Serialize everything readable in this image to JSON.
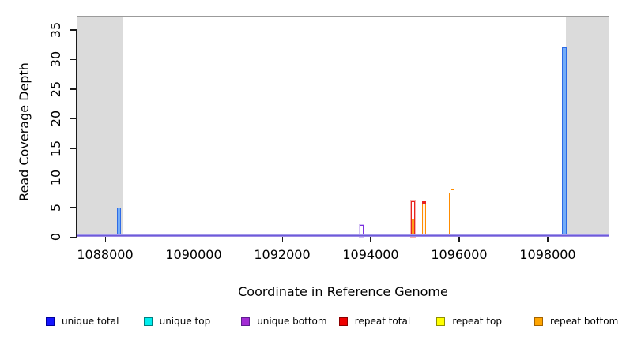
{
  "chart_data": {
    "type": "line",
    "title": "",
    "xlabel": "Coordinate in Reference Genome",
    "ylabel": "Read Coverage Depth",
    "xlim": [
      1087357,
      1099393
    ],
    "ylim": [
      0,
      37.2
    ],
    "x_ticks": [
      1088000,
      1090000,
      1092000,
      1094000,
      1096000,
      1098000
    ],
    "y_ticks": [
      0,
      5,
      10,
      15,
      20,
      25,
      30,
      35
    ],
    "grid": false,
    "legend_position": "bottom",
    "shaded_regions": [
      {
        "x0": 1087357,
        "x1": 1088392,
        "color": "#DBDBDB"
      },
      {
        "x0": 1098410,
        "x1": 1099393,
        "color": "#DBDBDB"
      }
    ],
    "series": [
      {
        "name": "unique total",
        "color": "#0000FF",
        "points": [
          {
            "x": 1088320,
            "depth": 5
          },
          {
            "x": 1098380,
            "depth": 32
          }
        ]
      },
      {
        "name": "unique top",
        "color": "#00FFFF",
        "points": []
      },
      {
        "name": "unique bottom",
        "color": "#A020F0",
        "points": [
          {
            "x": 1093790,
            "depth": 2
          }
        ]
      },
      {
        "name": "repeat total",
        "color": "#FF0000",
        "points": [
          {
            "x": 1094950,
            "depth": 6
          },
          {
            "x": 1095200,
            "depth": 6
          }
        ]
      },
      {
        "name": "repeat top",
        "color": "#FFFF00",
        "points": [
          {
            "x": 1094950,
            "depth": 3
          }
        ]
      },
      {
        "name": "repeat bottom",
        "color": "#FFA500",
        "points": [
          {
            "x": 1094950,
            "depth": 6
          },
          {
            "x": 1095200,
            "depth": 6
          },
          {
            "x": 1095550,
            "depth": 0.4
          },
          {
            "x": 1095790,
            "depth": 7.5
          },
          {
            "x": 1095845,
            "depth": 8
          }
        ]
      }
    ],
    "render": {
      "top_border_color": "#9B9B9B",
      "axis_color": "#1a1a1a",
      "baseline_colors": [
        "#C8BEF2",
        "#5A4AD6",
        "#BFA8EA"
      ],
      "bars": [
        {
          "x": 1088320,
          "y0": 0,
          "y1": 5,
          "w": 5,
          "stroke": "#2E6BE6",
          "fill": "#74ADF7"
        },
        {
          "x": 1093790,
          "y0": 0,
          "y1": 2,
          "w": 5,
          "stroke": "#7B2FE0",
          "fill": "#FFFFFF",
          "halo": "#D3C2F4"
        },
        {
          "x": 1094950,
          "y0": 0,
          "y1": 6,
          "w": 5,
          "stroke": "#E8231F",
          "fill": "#FFFFFF",
          "halo": "#F6B3AE"
        },
        {
          "x": 1094950,
          "y0": 0,
          "y1": 3,
          "w": 3,
          "stroke": "#FF9F1A",
          "fill": "#FFD84D"
        },
        {
          "x": 1095200,
          "y0": 0,
          "y1": 6,
          "w": 5,
          "stroke": "#FF8C00",
          "fill": "#FFF4E8"
        },
        {
          "x": 1095200,
          "y0": 5.55,
          "y1": 6,
          "w": 5,
          "stroke": "#E8231F",
          "fill": "#E8231F"
        },
        {
          "x": 1095550,
          "y0": 0,
          "y1": 0.4,
          "w": 7,
          "stroke": "#FF8C00",
          "fill": "#FFB347"
        },
        {
          "x": 1095790,
          "y0": 0,
          "y1": 7.5,
          "w": 3,
          "stroke": "#FF8C00",
          "fill": "#FFFFFF"
        },
        {
          "x": 1095845,
          "y0": 0,
          "y1": 8,
          "w": 5,
          "stroke": "#FF8C00",
          "fill": "#FFFFFF"
        },
        {
          "x": 1098380,
          "y0": 0,
          "y1": 32,
          "w": 6,
          "stroke": "#2E6BE6",
          "fill": "#74ADF7"
        }
      ]
    },
    "legend": [
      {
        "label": "unique total",
        "fill": "#1414FF",
        "border": "#00009B"
      },
      {
        "label": "unique top",
        "fill": "#00EEEE",
        "border": "#007F7F"
      },
      {
        "label": "unique bottom",
        "fill": "#A32CD4",
        "border": "#5E1E8F"
      },
      {
        "label": "repeat total",
        "fill": "#EE0000",
        "border": "#8B0000"
      },
      {
        "label": "repeat top",
        "fill": "#FFFF00",
        "border": "#8F8F00"
      },
      {
        "label": "repeat bottom",
        "fill": "#FFA500",
        "border": "#A36200"
      }
    ]
  }
}
